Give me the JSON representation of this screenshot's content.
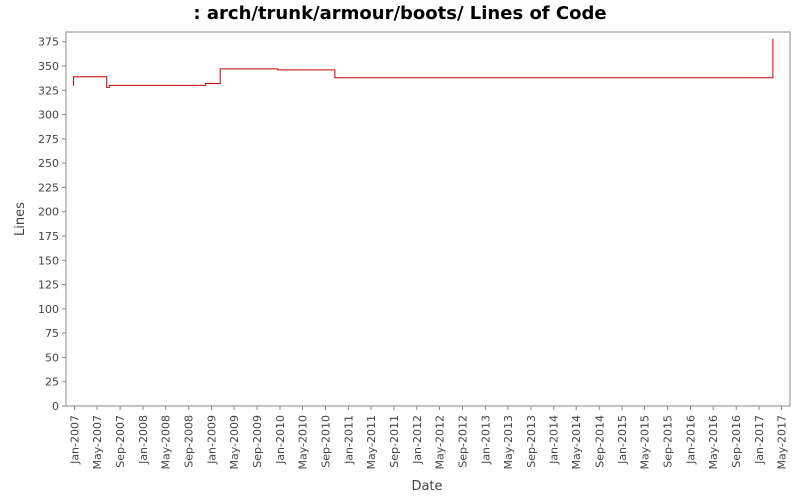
{
  "chart_data": {
    "type": "line",
    "title": ": arch/trunk/armour/boots/ Lines of Code",
    "xlabel": "Date",
    "ylabel": "Lines",
    "ylim": [
      0,
      385
    ],
    "xlim": [
      "2006-11-16",
      "2017-06-15"
    ],
    "yticks": [
      0,
      25,
      50,
      75,
      100,
      125,
      150,
      175,
      200,
      225,
      250,
      275,
      300,
      325,
      350,
      375
    ],
    "xticks": [
      "Jan-2007",
      "May-2007",
      "Sep-2007",
      "Jan-2008",
      "May-2008",
      "Sep-2008",
      "Jan-2009",
      "May-2009",
      "Sep-2009",
      "Jan-2010",
      "May-2010",
      "Sep-2010",
      "Jan-2011",
      "May-2011",
      "Sep-2011",
      "Jan-2012",
      "May-2012",
      "Sep-2012",
      "Jan-2013",
      "May-2013",
      "Sep-2013",
      "Jan-2014",
      "May-2014",
      "Sep-2014",
      "Jan-2015",
      "May-2015",
      "Sep-2015",
      "Jan-2016",
      "May-2016",
      "Sep-2016",
      "Jan-2017",
      "May-2017"
    ],
    "grid": false,
    "series": [
      {
        "color": "#cc0000",
        "step": true,
        "points": [
          [
            "2006-12-25",
            330
          ],
          [
            "2006-12-26",
            339
          ],
          [
            "2007-06-20",
            339
          ],
          [
            "2007-06-21",
            328
          ],
          [
            "2007-07-05",
            330
          ],
          [
            "2008-11-28",
            330
          ],
          [
            "2008-11-29",
            332
          ],
          [
            "2009-02-15",
            332
          ],
          [
            "2009-02-16",
            347
          ],
          [
            "2009-12-20",
            347
          ],
          [
            "2009-12-21",
            346
          ],
          [
            "2010-10-20",
            346
          ],
          [
            "2010-10-21",
            338
          ],
          [
            "2017-03-15",
            338
          ],
          [
            "2017-03-16",
            378
          ]
        ]
      }
    ]
  }
}
